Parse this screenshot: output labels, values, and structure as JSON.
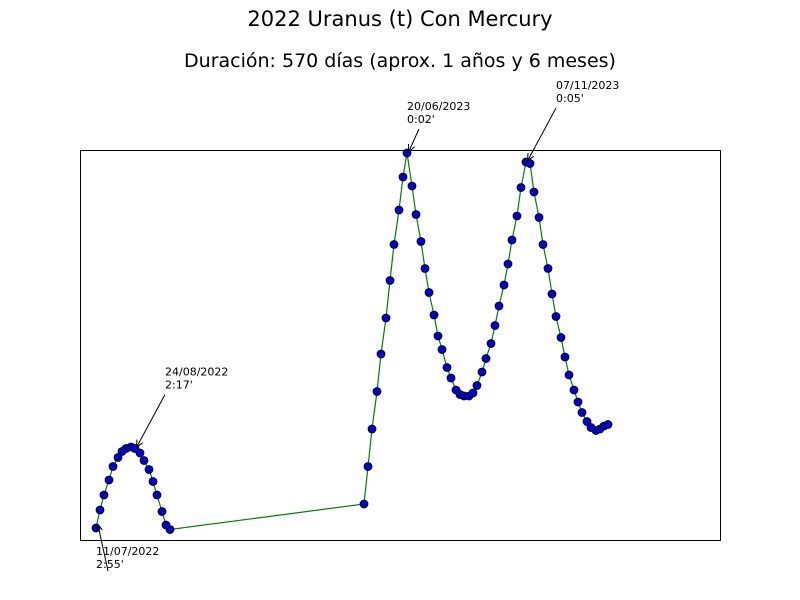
{
  "chart_data": {
    "type": "line",
    "title": "2022 Uranus (t) Con Mercury",
    "subtitle": "Duración: 570 días (aprox. 1 años y 6 meses)",
    "xlabel": "",
    "ylabel": "",
    "grid": false,
    "colors": {
      "line": "#008000",
      "marker_fill": "#0000cc",
      "marker_edge": "#000000"
    },
    "xlim": [
      -16,
      624
    ],
    "ylim": [
      0,
      2.6
    ],
    "series": [
      {
        "values": [
          [
            0,
            0.08
          ],
          [
            4,
            0.2
          ],
          [
            8,
            0.3
          ],
          [
            13,
            0.4
          ],
          [
            17,
            0.49
          ],
          [
            22,
            0.55
          ],
          [
            26,
            0.59
          ],
          [
            30,
            0.61
          ],
          [
            35,
            0.62
          ],
          [
            39,
            0.61
          ],
          [
            44,
            0.58
          ],
          [
            48,
            0.53
          ],
          [
            53,
            0.47
          ],
          [
            57,
            0.39
          ],
          [
            61,
            0.3
          ],
          [
            66,
            0.19
          ],
          [
            70,
            0.1
          ],
          [
            74,
            0.07
          ],
          [
            268,
            0.24
          ],
          [
            272,
            0.49
          ],
          [
            276,
            0.74
          ],
          [
            281,
            0.99
          ],
          [
            285,
            1.24
          ],
          [
            290,
            1.48
          ],
          [
            294,
            1.73
          ],
          [
            298,
            1.97
          ],
          [
            303,
            2.2
          ],
          [
            307,
            2.42
          ],
          [
            311,
            2.58
          ],
          [
            316,
            2.36
          ],
          [
            320,
            2.17
          ],
          [
            325,
            1.99
          ],
          [
            329,
            1.81
          ],
          [
            333,
            1.65
          ],
          [
            338,
            1.5
          ],
          [
            342,
            1.36
          ],
          [
            346,
            1.27
          ],
          [
            351,
            1.15
          ],
          [
            355,
            1.08
          ],
          [
            360,
            1.0
          ],
          [
            364,
            0.97
          ],
          [
            368,
            0.96
          ],
          [
            373,
            0.96
          ],
          [
            377,
            0.98
          ],
          [
            381,
            1.03
          ],
          [
            386,
            1.12
          ],
          [
            390,
            1.21
          ],
          [
            395,
            1.31
          ],
          [
            399,
            1.43
          ],
          [
            403,
            1.56
          ],
          [
            408,
            1.7
          ],
          [
            412,
            1.84
          ],
          [
            416,
            2.0
          ],
          [
            421,
            2.16
          ],
          [
            425,
            2.35
          ],
          [
            430,
            2.52
          ],
          [
            434,
            2.51
          ],
          [
            438,
            2.32
          ],
          [
            443,
            2.15
          ],
          [
            447,
            1.97
          ],
          [
            452,
            1.81
          ],
          [
            456,
            1.64
          ],
          [
            460,
            1.49
          ],
          [
            465,
            1.35
          ],
          [
            469,
            1.22
          ],
          [
            473,
            1.1
          ],
          [
            478,
            1.0
          ],
          [
            482,
            0.92
          ],
          [
            486,
            0.85
          ],
          [
            491,
            0.79
          ],
          [
            495,
            0.75
          ],
          [
            500,
            0.73
          ],
          [
            504,
            0.74
          ],
          [
            508,
            0.76
          ],
          [
            512,
            0.77
          ]
        ]
      }
    ],
    "annotations": [
      {
        "date": "11/07/2022",
        "time": "2:55'",
        "x": 0,
        "y": 0.08
      },
      {
        "date": "24/08/2022",
        "time": "2:17'",
        "x": 39,
        "y": 0.61
      },
      {
        "date": "20/06/2023",
        "time": "0:02'",
        "x": 311,
        "y": 2.58
      },
      {
        "date": "07/11/2023",
        "time": "0:05'",
        "x": 430,
        "y": 2.52
      }
    ]
  }
}
